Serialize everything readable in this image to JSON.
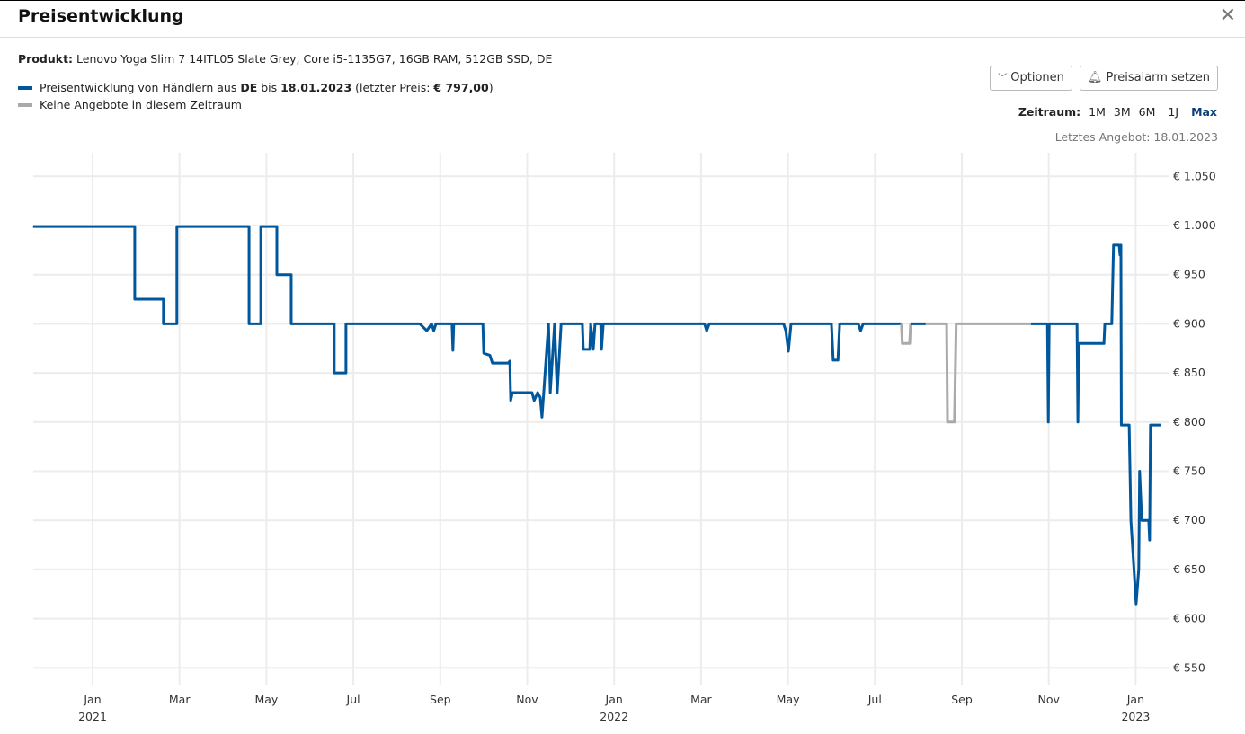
{
  "header": {
    "title": "Preisentwicklung",
    "close_icon": "close-icon"
  },
  "product": {
    "label": "Produkt:",
    "name": "Lenovo Yoga Slim 7 14ITL05 Slate Grey, Core i5-1135G7, 16GB RAM, 512GB SSD, DE"
  },
  "legend": {
    "p1": "Preisentwicklung von Händlern aus ",
    "country": "DE",
    "p2": " bis ",
    "date": "18.01.2023",
    "p3": " (letzter Preis: ",
    "price": "€ 797,00",
    "p4": ")",
    "gray": "Keine Angebote in diesem Zeitraum"
  },
  "buttons": {
    "options": "Optionen",
    "alarm": "Preisalarm setzen"
  },
  "range": {
    "label": "Zeitraum:",
    "options": [
      "1M",
      "3M",
      "6M",
      "1J",
      "Max"
    ],
    "active": "Max"
  },
  "last_offer": "Letztes Angebot: 18.01.2023",
  "colors": {
    "blue": "#00579c",
    "gray": "#aaaaaa",
    "active": "#0a3f7a"
  },
  "chart_data": {
    "type": "line",
    "x_unit": "months since Jan 2021",
    "xlim": [
      -1.37,
      24.6
    ],
    "ylim": [
      550,
      1050
    ],
    "yticks": [
      1050,
      1000,
      950,
      900,
      850,
      800,
      750,
      700,
      650,
      600,
      550
    ],
    "ytick_labels": [
      "€ 1.050",
      "€ 1.000",
      "€ 950",
      "€ 900",
      "€ 850",
      "€ 800",
      "€ 750",
      "€ 700",
      "€ 650",
      "€ 600",
      "€ 550"
    ],
    "xticks": [
      {
        "m": 0,
        "label": "Jan",
        "year": "2021"
      },
      {
        "m": 2,
        "label": "Mar"
      },
      {
        "m": 4,
        "label": "May"
      },
      {
        "m": 6,
        "label": "Jul"
      },
      {
        "m": 8,
        "label": "Sep"
      },
      {
        "m": 10,
        "label": "Nov"
      },
      {
        "m": 12,
        "label": "Jan",
        "year": "2022"
      },
      {
        "m": 14,
        "label": "Mar"
      },
      {
        "m": 16,
        "label": "May"
      },
      {
        "m": 18,
        "label": "Jul"
      },
      {
        "m": 20,
        "label": "Sep"
      },
      {
        "m": 22,
        "label": "Nov"
      },
      {
        "m": 24,
        "label": "Jan",
        "year": "2023"
      }
    ],
    "series": [
      {
        "name": "blue",
        "points": [
          [
            -1.37,
            999
          ],
          [
            0.97,
            999
          ],
          [
            0.97,
            925
          ],
          [
            1.63,
            925
          ],
          [
            1.63,
            900
          ],
          [
            1.94,
            900
          ],
          [
            1.94,
            999
          ],
          [
            3.6,
            999
          ],
          [
            3.6,
            900
          ],
          [
            3.87,
            900
          ],
          [
            3.87,
            999
          ],
          [
            4.24,
            999
          ],
          [
            4.24,
            950
          ],
          [
            4.57,
            950
          ],
          [
            4.57,
            900
          ],
          [
            5.56,
            900
          ],
          [
            5.56,
            850
          ],
          [
            5.83,
            850
          ],
          [
            5.83,
            900
          ],
          [
            7.53,
            900
          ],
          [
            7.69,
            893
          ],
          [
            7.8,
            900
          ],
          [
            7.85,
            893
          ],
          [
            7.9,
            900
          ],
          [
            8.27,
            900
          ],
          [
            8.29,
            873
          ],
          [
            8.31,
            900
          ],
          [
            8.98,
            900
          ],
          [
            9.0,
            870
          ],
          [
            9.14,
            868
          ],
          [
            9.2,
            860
          ],
          [
            9.56,
            860
          ],
          [
            9.6,
            862
          ],
          [
            9.62,
            822
          ],
          [
            9.66,
            830
          ],
          [
            10.11,
            830
          ],
          [
            10.16,
            822
          ],
          [
            10.24,
            830
          ],
          [
            10.3,
            825
          ],
          [
            10.34,
            805
          ],
          [
            10.38,
            830
          ],
          [
            10.49,
            900
          ],
          [
            10.53,
            830
          ],
          [
            10.63,
            900
          ],
          [
            10.69,
            830
          ],
          [
            10.78,
            900
          ],
          [
            11.27,
            900
          ],
          [
            11.29,
            874
          ],
          [
            11.44,
            874
          ],
          [
            11.46,
            900
          ],
          [
            11.52,
            874
          ],
          [
            11.56,
            900
          ],
          [
            11.69,
            900
          ],
          [
            11.71,
            874
          ],
          [
            11.75,
            900
          ],
          [
            14.08,
            900
          ],
          [
            14.13,
            893
          ],
          [
            14.19,
            900
          ],
          [
            15.9,
            900
          ],
          [
            15.95,
            893
          ],
          [
            16.01,
            872
          ],
          [
            16.07,
            900
          ],
          [
            17.0,
            900
          ],
          [
            17.04,
            863
          ],
          [
            17.15,
            863
          ],
          [
            17.19,
            900
          ],
          [
            17.62,
            900
          ],
          [
            17.67,
            893
          ],
          [
            17.73,
            900
          ],
          [
            18.35,
            900
          ],
          [
            18.61,
            900
          ]
        ]
      },
      {
        "name": "gray",
        "points": [
          [
            18.61,
            900
          ],
          [
            18.63,
            880
          ],
          [
            18.8,
            880
          ],
          [
            18.82,
            900
          ]
        ]
      },
      {
        "name": "blue",
        "points": [
          [
            18.82,
            900
          ],
          [
            19.17,
            900
          ]
        ]
      },
      {
        "name": "gray",
        "points": [
          [
            19.17,
            900
          ],
          [
            19.65,
            900
          ],
          [
            19.67,
            800
          ],
          [
            19.83,
            800
          ],
          [
            19.87,
            900
          ],
          [
            21.59,
            900
          ]
        ]
      },
      {
        "name": "blue",
        "points": [
          [
            21.59,
            900
          ],
          [
            21.97,
            900
          ],
          [
            21.99,
            800
          ],
          [
            22.01,
            900
          ],
          [
            22.65,
            900
          ],
          [
            22.67,
            800
          ],
          [
            22.69,
            880
          ],
          [
            23.27,
            880
          ],
          [
            23.29,
            900
          ],
          [
            23.45,
            900
          ],
          [
            23.49,
            980
          ],
          [
            23.62,
            980
          ],
          [
            23.64,
            970
          ],
          [
            23.66,
            980
          ],
          [
            23.67,
            797
          ],
          [
            23.85,
            797
          ],
          [
            23.89,
            700
          ],
          [
            24.01,
            615
          ],
          [
            24.07,
            650
          ],
          [
            24.09,
            750
          ],
          [
            24.14,
            700
          ],
          [
            24.3,
            700
          ],
          [
            24.32,
            680
          ],
          [
            24.34,
            797
          ],
          [
            24.57,
            797
          ]
        ]
      }
    ]
  }
}
